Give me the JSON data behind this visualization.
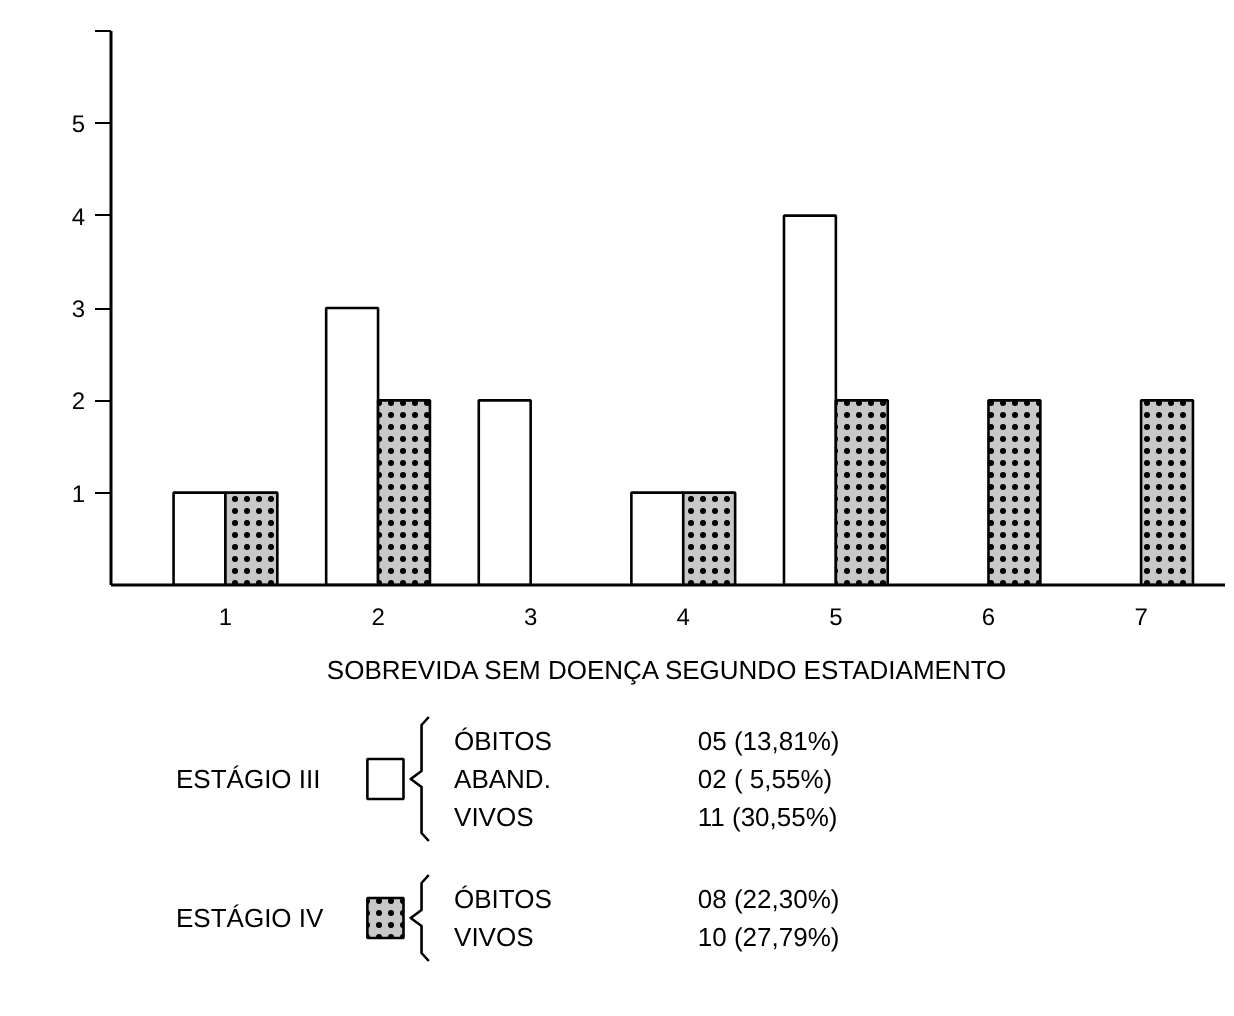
{
  "chart_data": {
    "type": "bar",
    "xlabel": "SOBREVIDA SEM DOENÇA SEGUNDO ESTADIAMENTO",
    "categories": [
      "1",
      "2",
      "3",
      "4",
      "5",
      "6",
      "7"
    ],
    "series": [
      {
        "name": "ESTÁGIO III",
        "color": "#ffffff",
        "values": [
          1,
          3,
          2,
          1,
          4,
          null,
          null
        ]
      },
      {
        "name": "ESTÁGIO IV",
        "color": "#c8c8c8",
        "values": [
          1,
          2,
          null,
          1,
          2,
          2,
          2
        ]
      }
    ],
    "ylim": [
      0,
      6
    ],
    "yticks": [
      1,
      2,
      3,
      4,
      5,
      {
        "value": 6,
        "label": null
      }
    ],
    "grid": false,
    "legend": "bottom",
    "annotations": [
      "ÓBITOS",
      "05 (13,81%)",
      "ABAND.",
      "02 ( 5,55%)",
      "VIVOS",
      "11 (30,55%)",
      "ÓBITOS",
      "08 (22,30%)",
      "VIVOS",
      "10 (27,79%)"
    ]
  }
}
